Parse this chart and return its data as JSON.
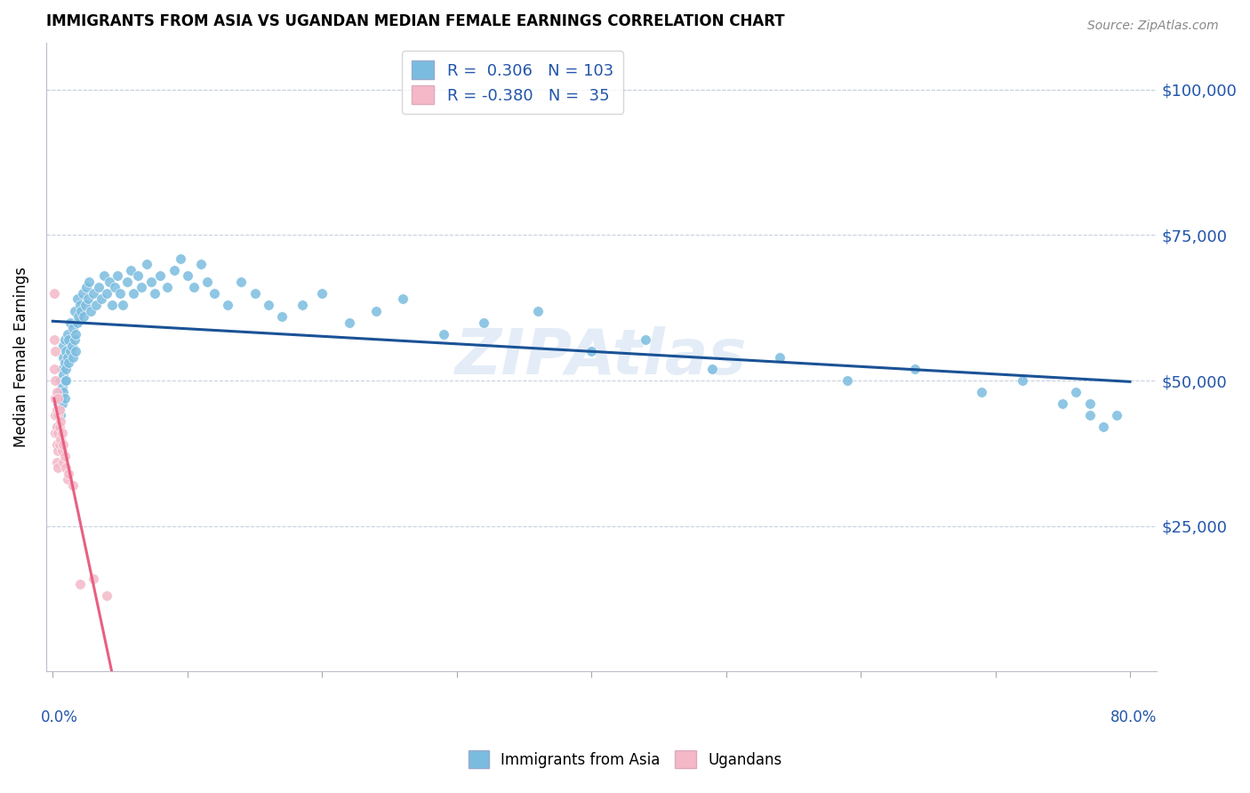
{
  "title": "IMMIGRANTS FROM ASIA VS UGANDAN MEDIAN FEMALE EARNINGS CORRELATION CHART",
  "source": "Source: ZipAtlas.com",
  "ylabel": "Median Female Earnings",
  "yticks": [
    25000,
    50000,
    75000,
    100000
  ],
  "ytick_labels": [
    "$25,000",
    "$50,000",
    "$75,000",
    "$100,000"
  ],
  "blue_color": "#7abce0",
  "pink_color": "#f4b8c8",
  "blue_line_color": "#1a5296",
  "pink_line_color": "#e86080",
  "pink_dash_color": "#e8b0be",
  "axis_color": "#2255aa",
  "watermark": "ZIPAtlas",
  "blue_scatter_x": [
    0.003,
    0.004,
    0.004,
    0.005,
    0.005,
    0.006,
    0.006,
    0.006,
    0.007,
    0.007,
    0.007,
    0.008,
    0.008,
    0.008,
    0.008,
    0.009,
    0.009,
    0.009,
    0.009,
    0.01,
    0.01,
    0.01,
    0.011,
    0.011,
    0.012,
    0.012,
    0.013,
    0.013,
    0.014,
    0.015,
    0.015,
    0.016,
    0.016,
    0.017,
    0.017,
    0.018,
    0.018,
    0.019,
    0.02,
    0.021,
    0.022,
    0.023,
    0.024,
    0.025,
    0.026,
    0.027,
    0.028,
    0.03,
    0.032,
    0.034,
    0.036,
    0.038,
    0.04,
    0.042,
    0.044,
    0.046,
    0.048,
    0.05,
    0.052,
    0.055,
    0.058,
    0.06,
    0.063,
    0.066,
    0.07,
    0.073,
    0.076,
    0.08,
    0.085,
    0.09,
    0.095,
    0.1,
    0.105,
    0.11,
    0.115,
    0.12,
    0.13,
    0.14,
    0.15,
    0.16,
    0.17,
    0.185,
    0.2,
    0.22,
    0.24,
    0.26,
    0.29,
    0.32,
    0.36,
    0.4,
    0.44,
    0.49,
    0.54,
    0.59,
    0.64,
    0.69,
    0.72,
    0.75,
    0.76,
    0.77,
    0.77,
    0.78,
    0.79
  ],
  "blue_scatter_y": [
    44000,
    42000,
    46000,
    45000,
    48000,
    47000,
    50000,
    44000,
    49000,
    52000,
    46000,
    51000,
    54000,
    48000,
    56000,
    50000,
    53000,
    57000,
    47000,
    52000,
    55000,
    50000,
    54000,
    58000,
    53000,
    57000,
    55000,
    60000,
    56000,
    54000,
    59000,
    57000,
    62000,
    58000,
    55000,
    60000,
    64000,
    61000,
    63000,
    62000,
    65000,
    61000,
    63000,
    66000,
    64000,
    67000,
    62000,
    65000,
    63000,
    66000,
    64000,
    68000,
    65000,
    67000,
    63000,
    66000,
    68000,
    65000,
    63000,
    67000,
    69000,
    65000,
    68000,
    66000,
    70000,
    67000,
    65000,
    68000,
    66000,
    69000,
    71000,
    68000,
    66000,
    70000,
    67000,
    65000,
    63000,
    67000,
    65000,
    63000,
    61000,
    63000,
    65000,
    60000,
    62000,
    64000,
    58000,
    60000,
    62000,
    55000,
    57000,
    52000,
    54000,
    50000,
    52000,
    48000,
    50000,
    46000,
    48000,
    44000,
    46000,
    42000,
    44000
  ],
  "pink_scatter_x": [
    0.001,
    0.001,
    0.001,
    0.002,
    0.002,
    0.002,
    0.002,
    0.002,
    0.003,
    0.003,
    0.003,
    0.003,
    0.003,
    0.004,
    0.004,
    0.004,
    0.004,
    0.004,
    0.005,
    0.005,
    0.005,
    0.006,
    0.006,
    0.007,
    0.007,
    0.008,
    0.008,
    0.009,
    0.01,
    0.011,
    0.012,
    0.015,
    0.02,
    0.03,
    0.04
  ],
  "pink_scatter_y": [
    65000,
    57000,
    52000,
    55000,
    50000,
    47000,
    44000,
    41000,
    48000,
    45000,
    42000,
    39000,
    36000,
    47000,
    44000,
    41000,
    38000,
    35000,
    45000,
    42000,
    39000,
    43000,
    40000,
    41000,
    38000,
    39000,
    36000,
    37000,
    35000,
    33000,
    34000,
    32000,
    15000,
    16000,
    13000
  ],
  "xlim": [
    -0.005,
    0.82
  ],
  "ylim": [
    0,
    108000
  ],
  "blue_line_x_end": 0.8,
  "pink_line_solid_end": 0.095,
  "pink_line_dash_end": 0.48
}
